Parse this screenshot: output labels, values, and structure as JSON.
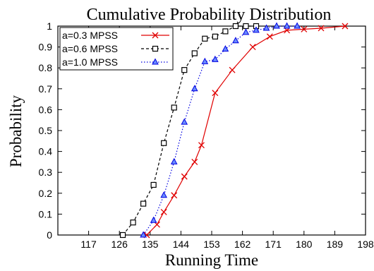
{
  "chart_data": {
    "type": "line",
    "title": "Cumulative Probability Distribution",
    "xlabel": "Running Time",
    "ylabel": "Probability",
    "xlim": [
      108,
      198
    ],
    "ylim": [
      0,
      1
    ],
    "xticks": [
      "117",
      "126",
      "135",
      "144",
      "153",
      "162",
      "171",
      "180",
      "189",
      "198"
    ],
    "yticks": [
      "0",
      "0.1",
      "0.2",
      "0.3",
      "0.4",
      "0.5",
      "0.6",
      "0.7",
      "0.8",
      "0.9",
      "1"
    ],
    "grid": false,
    "legend_position": "top-left",
    "series": [
      {
        "name": "a=0.3 MPSS",
        "color": "#e00000",
        "marker": "x",
        "line": "solid",
        "x": [
          134,
          137,
          139,
          142,
          145,
          148,
          150,
          154,
          159,
          165,
          170,
          175,
          180,
          185,
          192
        ],
        "y": [
          0,
          0.05,
          0.11,
          0.19,
          0.28,
          0.35,
          0.43,
          0.68,
          0.79,
          0.9,
          0.95,
          0.98,
          0.985,
          0.99,
          1.0
        ]
      },
      {
        "name": "a=0.6 MPSS",
        "color": "#000000",
        "marker": "square",
        "line": "dashed",
        "x": [
          127,
          130,
          133,
          136,
          139,
          142,
          145,
          148,
          151,
          154,
          157,
          160,
          163,
          166
        ],
        "y": [
          0,
          0.06,
          0.15,
          0.24,
          0.44,
          0.61,
          0.79,
          0.87,
          0.94,
          0.95,
          0.975,
          1.0,
          1.0,
          1.0
        ]
      },
      {
        "name": "a=1.0 MPSS",
        "color": "#0000e0",
        "marker": "triangle",
        "line": "dotted",
        "x": [
          133,
          136,
          139,
          142,
          145,
          148,
          151,
          154,
          157,
          160,
          163,
          166,
          169,
          172,
          175,
          178
        ],
        "y": [
          0,
          0.07,
          0.19,
          0.35,
          0.54,
          0.7,
          0.83,
          0.84,
          0.89,
          0.93,
          0.97,
          0.98,
          0.99,
          1.0,
          1.0,
          1.0
        ]
      }
    ]
  }
}
